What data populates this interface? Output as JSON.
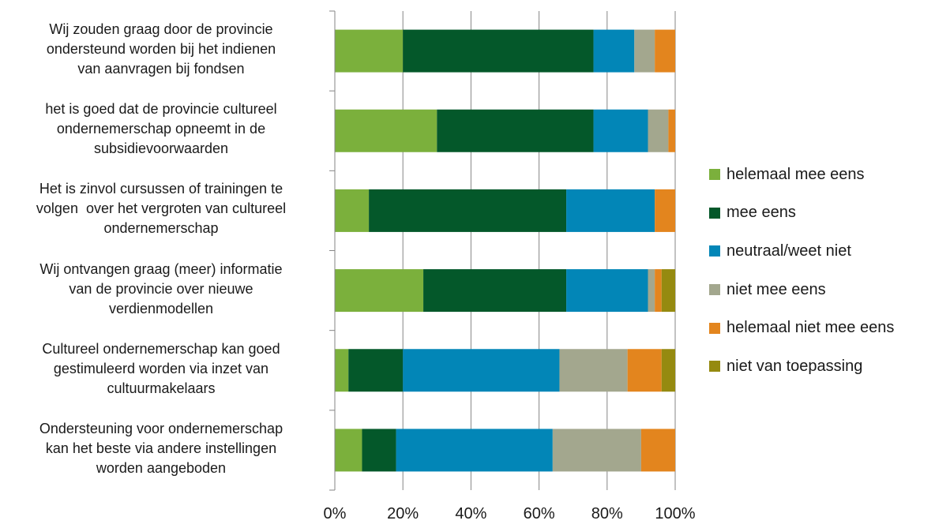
{
  "chart_data": {
    "type": "bar",
    "orientation": "horizontal",
    "stacked": "percent",
    "categories": [
      "Wij zouden graag door de provincie ondersteund worden bij het indienen van aanvragen bij fondsen",
      "het is goed dat de provincie cultureel ondernemerschap opneemt in de subsidievoorwaarden",
      "Het is zinvol cursussen of trainingen te volgen  over het vergroten van cultureel ondernemerschap",
      "Wij ontvangen graag (meer) informatie van de provincie over nieuwe verdienmodellen",
      "Cultureel ondernemerschap kan goed gestimuleerd worden via inzet van cultuurmakelaars",
      "Ondersteuning voor ondernemerschap kan het beste via andere instellingen worden aangeboden"
    ],
    "category_lines": [
      [
        "Wij zouden graag door de provincie",
        "ondersteund worden bij het indienen",
        "van aanvragen bij fondsen"
      ],
      [
        "het is goed dat de provincie cultureel",
        "ondernemerschap opneemt in de",
        "subsidievoorwaarden"
      ],
      [
        "Het is zinvol cursussen of trainingen te",
        "volgen  over het vergroten van cultureel",
        "ondernemerschap"
      ],
      [
        "Wij ontvangen graag (meer) informatie",
        "van de provincie over nieuwe",
        "verdienmodellen"
      ],
      [
        "Cultureel ondernemerschap kan goed",
        "gestimuleerd worden via inzet van",
        "cultuurmakelaars"
      ],
      [
        "Ondersteuning voor ondernemerschap",
        "kan het beste via andere instellingen",
        "worden aangeboden"
      ]
    ],
    "series": [
      {
        "name": "helemaal mee eens",
        "color": "#7bb03c",
        "values": [
          20,
          30,
          10,
          26,
          4,
          8
        ]
      },
      {
        "name": "mee eens",
        "color": "#04582a",
        "values": [
          56,
          46,
          58,
          42,
          16,
          10
        ]
      },
      {
        "name": "neutraal/weet niet",
        "color": "#0286b7",
        "values": [
          12,
          16,
          26,
          24,
          46,
          46
        ]
      },
      {
        "name": "niet mee eens",
        "color": "#a3a78e",
        "values": [
          6,
          6,
          0,
          2,
          20,
          26
        ]
      },
      {
        "name": "helemaal niet mee eens",
        "color": "#e3851e",
        "values": [
          6,
          2,
          6,
          2,
          10,
          10
        ]
      },
      {
        "name": "niet van toepassing",
        "color": "#958a10",
        "values": [
          0,
          0,
          0,
          4,
          4,
          0
        ]
      }
    ],
    "xlim": [
      0,
      100
    ],
    "x_ticks": [
      "0%",
      "20%",
      "40%",
      "60%",
      "80%",
      "100%"
    ],
    "grid": "vertical",
    "legend": "right",
    "title": "",
    "xlabel": "",
    "ylabel": ""
  }
}
